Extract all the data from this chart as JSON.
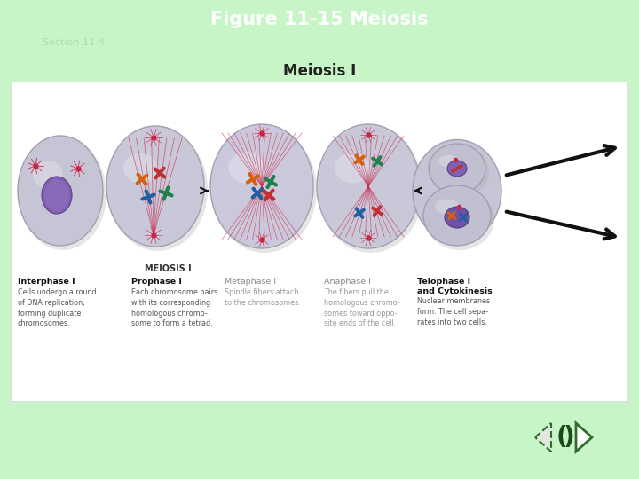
{
  "title": "Figure 11-15 Meiosis",
  "subtitle": "Section 11-4",
  "section_label": "Meiosis I",
  "bg_color": "#c8f5c8",
  "title_color": "#ffffff",
  "subtitle_color": "#b0ddb0",
  "title_fontsize": 15,
  "subtitle_fontsize": 8,
  "section_fontsize": 12,
  "meiosis_label": "MEIOSIS I",
  "stages": [
    "Interphase I",
    "Prophase I",
    "Metaphase I",
    "Anaphase I",
    "Telophase I\nand Cytokinesis"
  ],
  "stage_bold": [
    true,
    true,
    false,
    false,
    true
  ],
  "descriptions": [
    "Cells undergo a round\nof DNA replication,\nforming duplicate\nchromosomes.",
    "Each chromosome pairs\nwith its corresponding\nhomologous chromo-\nsome to form a tetrad.",
    "Spindle fibers attach\nto the chromosomes.",
    "The fibers pull the\nhomologous chromo-\nsomes toward oppo-\nsite ends of the cell.",
    "Nuclear membranes\nform. The cell sepa-\nrates into two cells."
  ],
  "cell_color": "#c8c8d8",
  "cell_border": "#a0a0b0",
  "nuclear_color": "#7850a0",
  "spindle_color": "#cc2244",
  "arrow_color": "#111111",
  "panel_bg": "#ffffff",
  "panel_border": "#dddddd",
  "nav_border": "#2d6e2d"
}
